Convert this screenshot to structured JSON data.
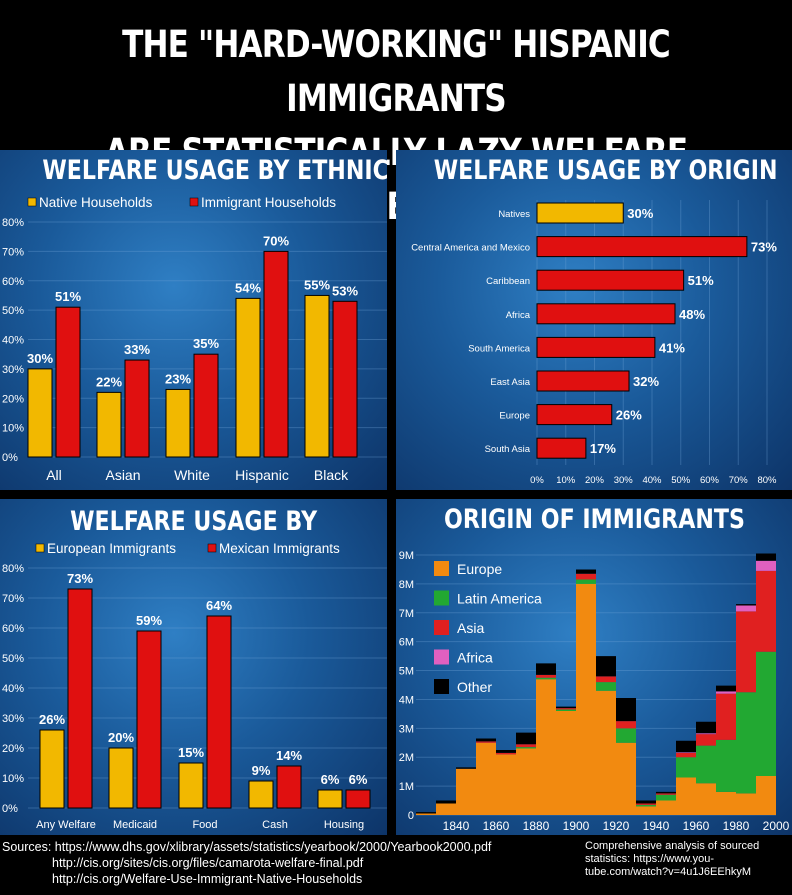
{
  "headline": {
    "line1": "THE \"HARD-WORKING\" HISPANIC IMMIGRANTS",
    "line2": "ARE STATISTICALLY LAZY WELFARE USERS"
  },
  "colors": {
    "native": "#f2b800",
    "immigrant": "#e01010",
    "europe": "#f28a10",
    "latin": "#22a832",
    "asia": "#e02020",
    "africa": "#e060c0",
    "other": "#000000"
  },
  "sources": {
    "line1": "Sources: https://www.dhs.gov/xlibrary/assets/statistics/yearbook/2000/Yearbook2000.pdf",
    "line2": "http://cis.org/sites/cis.org/files/camarota-welfare-final.pdf",
    "line3": "http://cis.org/Welfare-Use-Immigrant-Native-Households",
    "note": "Comprehensive analysis of sourced statistics: https://www.you-tube.com/watch?v=4u1J6EEhkyM"
  },
  "chart_data": [
    {
      "type": "bar",
      "title": "WELFARE USAGE BY ETHNICITY",
      "categories": [
        "All",
        "Asian",
        "White",
        "Hispanic",
        "Black"
      ],
      "series": [
        {
          "name": "Native Households",
          "values": [
            30,
            22,
            23,
            54,
            55
          ],
          "labels": [
            "30%",
            "22%",
            "23%",
            "54%",
            "55%"
          ]
        },
        {
          "name": "Immigrant Households",
          "values": [
            51,
            33,
            35,
            70,
            53
          ],
          "labels": [
            "51%",
            "33%",
            "35%",
            "70%",
            "53%"
          ]
        }
      ],
      "ylim": [
        0,
        80
      ],
      "yticks": [
        "0%",
        "10%",
        "20%",
        "30%",
        "40%",
        "50%",
        "60%",
        "70%",
        "80%"
      ]
    },
    {
      "type": "bar",
      "orientation": "horizontal",
      "title": "WELFARE USAGE BY ORIGIN",
      "categories": [
        "Natives",
        "Central America and Mexico",
        "Caribbean",
        "Africa",
        "South America",
        "East Asia",
        "Europe",
        "South Asia"
      ],
      "values": [
        30,
        73,
        51,
        48,
        41,
        32,
        26,
        17
      ],
      "labels": [
        "30%",
        "73%",
        "51%",
        "48%",
        "41%",
        "32%",
        "26%",
        "17%"
      ],
      "xlim": [
        0,
        80
      ],
      "xticks": [
        "0%",
        "10%",
        "20%",
        "30%",
        "40%",
        "50%",
        "60%",
        "70%",
        "80%"
      ]
    },
    {
      "type": "bar",
      "title": "WELFARE USAGE BY",
      "categories": [
        "Any Welfare",
        "Medicaid",
        "Food",
        "Cash",
        "Housing"
      ],
      "series": [
        {
          "name": "European Immigrants",
          "values": [
            26,
            20,
            15,
            9,
            6
          ],
          "labels": [
            "26%",
            "20%",
            "15%",
            "9%",
            "6%"
          ]
        },
        {
          "name": "Mexican Immigrants",
          "values": [
            73,
            59,
            64,
            14,
            6
          ],
          "labels": [
            "73%",
            "59%",
            "64%",
            "14%",
            "6%"
          ]
        }
      ],
      "ylim": [
        0,
        80
      ],
      "yticks": [
        "0%",
        "10%",
        "20%",
        "30%",
        "40%",
        "50%",
        "60%",
        "70%",
        "80%"
      ]
    },
    {
      "type": "area",
      "stacked": true,
      "title": "ORIGIN OF IMMIGRANTS",
      "x": [
        1820,
        1830,
        1840,
        1850,
        1860,
        1870,
        1880,
        1890,
        1900,
        1910,
        1920,
        1930,
        1940,
        1950,
        1960,
        1970,
        1980,
        1990,
        2000
      ],
      "series": [
        {
          "name": "Europe",
          "values": [
            0.05,
            0.4,
            1.6,
            2.5,
            2.1,
            2.3,
            4.7,
            3.6,
            8.0,
            4.3,
            2.5,
            0.3,
            0.5,
            1.3,
            1.1,
            0.8,
            0.75,
            1.35,
            0.0
          ]
        },
        {
          "name": "Latin America",
          "values": [
            0.0,
            0.0,
            0.0,
            0.0,
            0.0,
            0.05,
            0.05,
            0.05,
            0.15,
            0.3,
            0.5,
            0.05,
            0.2,
            0.7,
            1.3,
            1.8,
            3.5,
            4.3,
            0.0
          ]
        },
        {
          "name": "Asia",
          "values": [
            0.0,
            0.0,
            0.0,
            0.05,
            0.05,
            0.1,
            0.1,
            0.05,
            0.2,
            0.2,
            0.25,
            0.05,
            0.05,
            0.15,
            0.4,
            1.6,
            2.8,
            2.8,
            0.0
          ]
        },
        {
          "name": "Africa",
          "values": [
            0.0,
            0.0,
            0.0,
            0.0,
            0.0,
            0.0,
            0.0,
            0.0,
            0.0,
            0.0,
            0.0,
            0.0,
            0.0,
            0.02,
            0.03,
            0.08,
            0.2,
            0.35,
            0.0
          ]
        },
        {
          "name": "Other",
          "values": [
            0.05,
            0.1,
            0.05,
            0.1,
            0.1,
            0.4,
            0.4,
            0.05,
            0.15,
            0.7,
            0.8,
            0.1,
            0.05,
            0.4,
            0.4,
            0.2,
            0.05,
            0.25,
            0.0
          ]
        }
      ],
      "ylim": [
        0,
        9
      ],
      "yticks": [
        "0",
        "1M",
        "2M",
        "3M",
        "4M",
        "5M",
        "6M",
        "7M",
        "8M",
        "9M"
      ],
      "xticks": [
        "1840",
        "1860",
        "1880",
        "1900",
        "1920",
        "1940",
        "1960",
        "1980",
        "2000"
      ]
    }
  ]
}
